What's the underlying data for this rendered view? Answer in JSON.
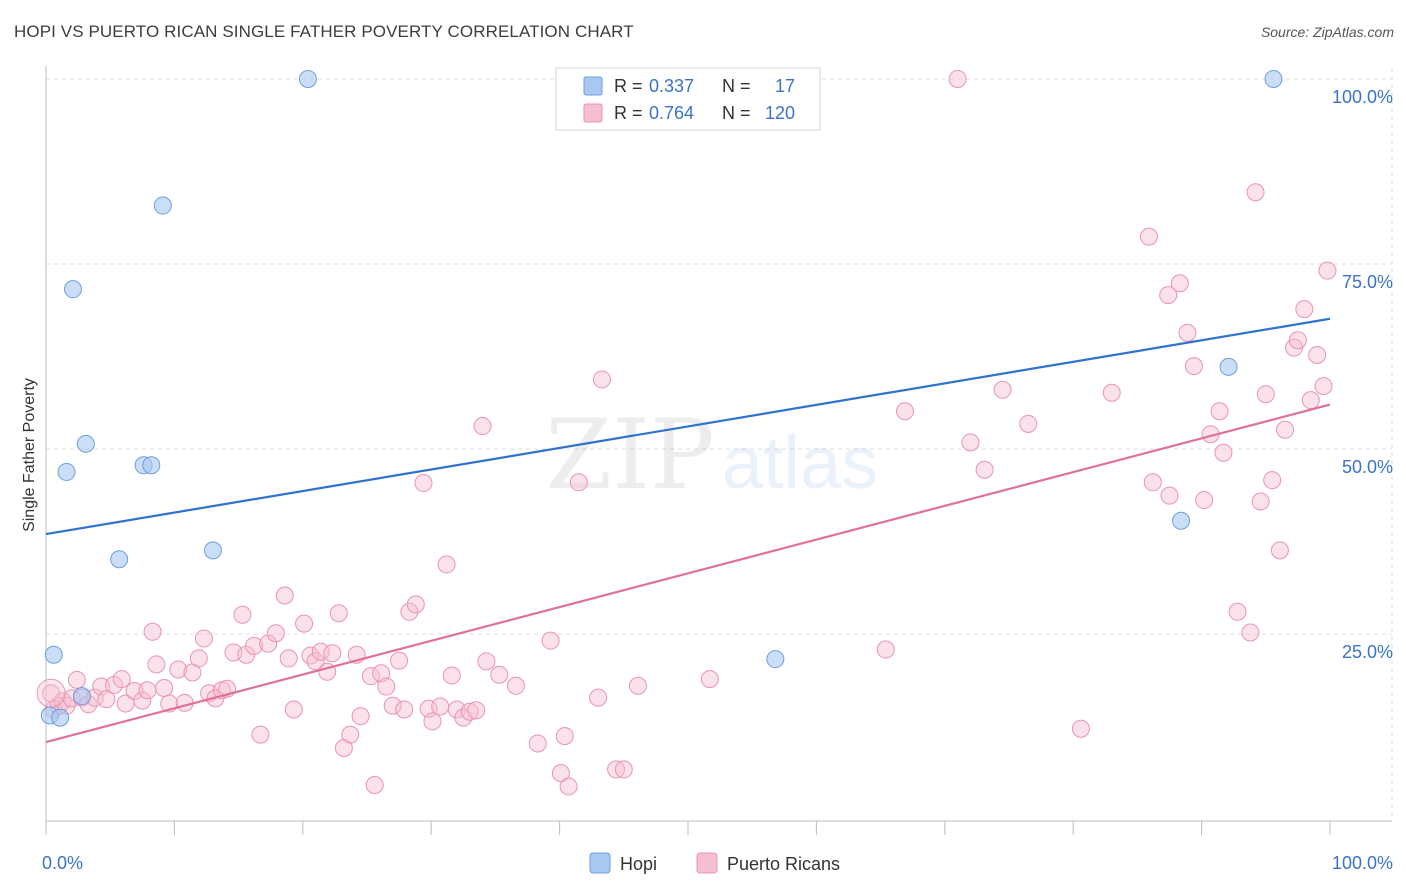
{
  "title": "HOPI VS PUERTO RICAN SINGLE FATHER POVERTY CORRELATION CHART",
  "source": "Source: ZipAtlas.com",
  "watermark": {
    "zip": "ZIP",
    "atlas": "atlas"
  },
  "colors": {
    "hopi_fill": "#a9c8f1",
    "hopi_stroke": "#6f9fdc",
    "hopi_line": "#2f72d0",
    "pr_fill": "#f6bfd0",
    "pr_stroke": "#ea94b0",
    "pr_line": "#e0709a",
    "axis_label": "#3b73c8",
    "grid": "#dedede"
  },
  "legend": {
    "rows": [
      {
        "r_label": "R =",
        "r_value": "0.337",
        "n_label": "N =",
        "n_value": "17"
      },
      {
        "r_label": "R =",
        "r_value": "0.764",
        "n_label": "N =",
        "n_value": "120"
      }
    ]
  },
  "bottom_legend": [
    "Hopi",
    "Puerto Ricans"
  ],
  "chart_data": {
    "type": "scatter",
    "title": "HOPI VS PUERTO RICAN SINGLE FATHER POVERTY CORRELATION CHART",
    "xlabel": "",
    "ylabel": "Single Father Poverty",
    "xlim": [
      0,
      100
    ],
    "ylim": [
      0,
      100
    ],
    "x_tick_labels": [
      "0.0%",
      "100.0%"
    ],
    "y_tick_labels": [
      "25.0%",
      "50.0%",
      "75.0%",
      "100.0%"
    ],
    "y_ticks": [
      25,
      50,
      75,
      100
    ],
    "series": [
      {
        "name": "Hopi",
        "r": 0.337,
        "n": 17,
        "trend": {
          "x": [
            0,
            100
          ],
          "y": [
            38.5,
            67.6
          ]
        },
        "points": [
          [
            0.3,
            14.0
          ],
          [
            0.6,
            22.2
          ],
          [
            1.1,
            13.7
          ],
          [
            1.6,
            46.9
          ],
          [
            2.1,
            71.6
          ],
          [
            2.8,
            16.6
          ],
          [
            3.1,
            50.7
          ],
          [
            5.7,
            35.1
          ],
          [
            7.6,
            47.8
          ],
          [
            8.2,
            47.8
          ],
          [
            9.1,
            82.9
          ],
          [
            13.0,
            36.3
          ],
          [
            20.4,
            100.0
          ],
          [
            56.8,
            21.6
          ],
          [
            88.4,
            40.3
          ],
          [
            92.1,
            61.1
          ],
          [
            95.6,
            100.0
          ]
        ]
      },
      {
        "name": "Puerto Ricans",
        "r": 0.764,
        "n": 120,
        "trend": {
          "x": [
            0,
            100
          ],
          "y": [
            10.4,
            56.0
          ]
        },
        "points": [
          [
            0.4,
            17.0
          ],
          [
            0.6,
            14.8
          ],
          [
            1.0,
            15.3
          ],
          [
            1.3,
            15.9
          ],
          [
            1.6,
            15.3
          ],
          [
            2.0,
            16.3
          ],
          [
            2.4,
            18.8
          ],
          [
            2.8,
            16.4
          ],
          [
            3.3,
            15.5
          ],
          [
            3.8,
            16.4
          ],
          [
            4.3,
            17.9
          ],
          [
            4.7,
            16.2
          ],
          [
            5.3,
            18.1
          ],
          [
            5.9,
            18.9
          ],
          [
            6.2,
            15.6
          ],
          [
            6.9,
            17.3
          ],
          [
            7.5,
            16.0
          ],
          [
            7.9,
            17.4
          ],
          [
            8.3,
            25.3
          ],
          [
            8.6,
            20.9
          ],
          [
            9.2,
            17.7
          ],
          [
            9.6,
            15.6
          ],
          [
            10.3,
            20.2
          ],
          [
            10.8,
            15.7
          ],
          [
            11.4,
            19.8
          ],
          [
            11.9,
            21.7
          ],
          [
            12.3,
            24.4
          ],
          [
            12.7,
            17.0
          ],
          [
            13.2,
            16.3
          ],
          [
            13.7,
            17.4
          ],
          [
            14.1,
            17.6
          ],
          [
            14.6,
            22.5
          ],
          [
            15.3,
            27.6
          ],
          [
            15.6,
            22.2
          ],
          [
            16.2,
            23.4
          ],
          [
            16.7,
            11.4
          ],
          [
            17.3,
            23.7
          ],
          [
            17.9,
            25.1
          ],
          [
            18.6,
            30.2
          ],
          [
            18.9,
            21.7
          ],
          [
            19.3,
            14.8
          ],
          [
            20.1,
            26.4
          ],
          [
            20.6,
            22.1
          ],
          [
            21.0,
            21.3
          ],
          [
            21.4,
            22.6
          ],
          [
            21.9,
            19.9
          ],
          [
            22.3,
            22.4
          ],
          [
            22.8,
            27.8
          ],
          [
            23.2,
            9.6
          ],
          [
            23.7,
            11.4
          ],
          [
            24.2,
            22.2
          ],
          [
            24.5,
            13.9
          ],
          [
            25.3,
            19.3
          ],
          [
            25.6,
            4.6
          ],
          [
            26.1,
            19.7
          ],
          [
            26.5,
            17.9
          ],
          [
            27.0,
            15.3
          ],
          [
            27.5,
            21.4
          ],
          [
            27.9,
            14.8
          ],
          [
            28.3,
            28.0
          ],
          [
            28.8,
            29.0
          ],
          [
            29.4,
            45.4
          ],
          [
            29.8,
            14.9
          ],
          [
            30.1,
            13.2
          ],
          [
            30.7,
            15.2
          ],
          [
            31.2,
            34.4
          ],
          [
            31.6,
            19.4
          ],
          [
            32.0,
            14.8
          ],
          [
            32.5,
            13.7
          ],
          [
            33.0,
            14.5
          ],
          [
            33.5,
            14.7
          ],
          [
            34.0,
            53.1
          ],
          [
            34.3,
            21.3
          ],
          [
            35.3,
            19.5
          ],
          [
            36.6,
            18.0
          ],
          [
            38.3,
            10.2
          ],
          [
            39.3,
            24.1
          ],
          [
            40.1,
            6.2
          ],
          [
            40.4,
            11.2
          ],
          [
            40.7,
            4.4
          ],
          [
            41.5,
            45.5
          ],
          [
            43.0,
            16.4
          ],
          [
            43.3,
            59.4
          ],
          [
            44.4,
            6.7
          ],
          [
            45.0,
            6.7
          ],
          [
            46.1,
            18.0
          ],
          [
            51.7,
            18.9
          ],
          [
            65.4,
            22.9
          ],
          [
            66.9,
            55.1
          ],
          [
            71.0,
            100.0
          ],
          [
            72.0,
            50.9
          ],
          [
            73.1,
            47.2
          ],
          [
            74.5,
            58.0
          ],
          [
            76.5,
            53.4
          ],
          [
            80.6,
            12.2
          ],
          [
            83.0,
            57.6
          ],
          [
            85.9,
            78.7
          ],
          [
            86.2,
            45.5
          ],
          [
            87.4,
            70.8
          ],
          [
            87.5,
            43.7
          ],
          [
            88.3,
            72.4
          ],
          [
            88.9,
            65.7
          ],
          [
            89.4,
            61.2
          ],
          [
            90.2,
            43.1
          ],
          [
            90.7,
            52.0
          ],
          [
            91.4,
            55.1
          ],
          [
            91.7,
            49.5
          ],
          [
            92.8,
            28.0
          ],
          [
            93.8,
            25.2
          ],
          [
            94.2,
            84.7
          ],
          [
            94.6,
            42.9
          ],
          [
            95.0,
            57.4
          ],
          [
            95.5,
            45.8
          ],
          [
            96.1,
            36.3
          ],
          [
            96.5,
            52.6
          ],
          [
            97.2,
            63.7
          ],
          [
            97.5,
            64.7
          ],
          [
            98.0,
            68.9
          ],
          [
            98.5,
            56.6
          ],
          [
            99.0,
            62.7
          ],
          [
            99.5,
            58.5
          ],
          [
            99.8,
            74.1
          ]
        ]
      }
    ]
  }
}
